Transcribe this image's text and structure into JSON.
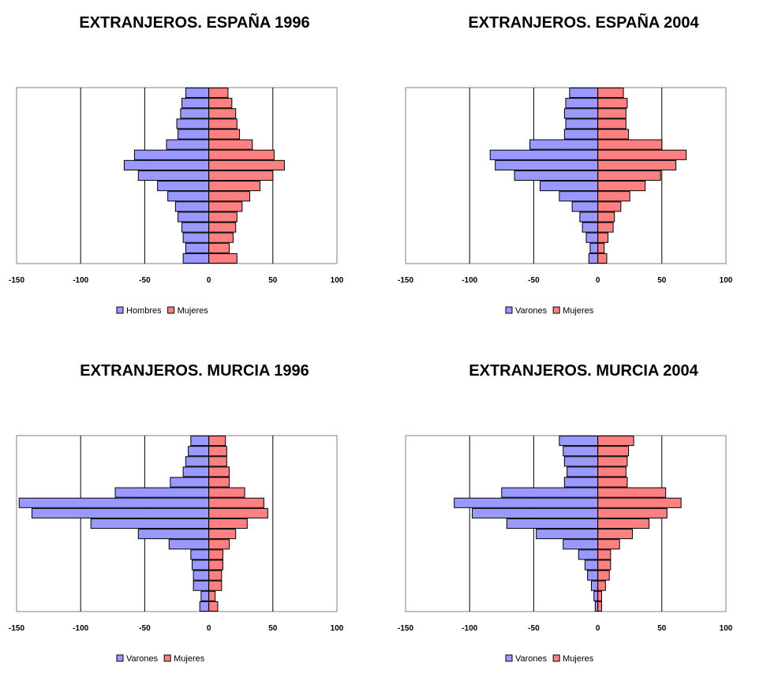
{
  "chart_data": [
    {
      "type": "bar",
      "title": "EXTRANJEROS. ESPAÑA 1996",
      "xlim": [
        -150,
        100
      ],
      "xticks": [
        "-150",
        "-100",
        "-50",
        "0",
        "50",
        "100"
      ],
      "series": [
        {
          "name": "Hombres",
          "color": "#9999ff",
          "values": [
            -20,
            -18,
            -20,
            -21,
            -24,
            -26,
            -32,
            -40,
            -55,
            -66,
            -58,
            -33,
            -24,
            -25,
            -22,
            -21,
            -18
          ]
        },
        {
          "name": "Mujeres",
          "color": "#ff8080",
          "values": [
            22,
            16,
            19,
            21,
            22,
            26,
            32,
            40,
            50,
            59,
            51,
            34,
            24,
            22,
            21,
            18,
            15
          ]
        }
      ]
    },
    {
      "type": "bar",
      "title": "EXTRANJEROS. ESPAÑA 2004",
      "xlim": [
        -150,
        100
      ],
      "xticks": [
        "-150",
        "-100",
        "-50",
        "0",
        "50",
        "100"
      ],
      "series": [
        {
          "name": "Varones",
          "color": "#9999ff",
          "values": [
            -7,
            -6,
            -9,
            -12,
            -14,
            -20,
            -30,
            -45,
            -65,
            -80,
            -84,
            -53,
            -26,
            -25,
            -26,
            -25,
            -22
          ]
        },
        {
          "name": "Mujeres",
          "color": "#ff8080",
          "values": [
            7,
            5,
            8,
            12,
            13,
            18,
            25,
            37,
            49,
            61,
            69,
            50,
            24,
            22,
            22,
            23,
            20
          ]
        }
      ]
    },
    {
      "type": "bar",
      "title": "EXTRANJEROS. MURCIA 1996",
      "xlim": [
        -150,
        100
      ],
      "xticks": [
        "-150",
        "-100",
        "-50",
        "0",
        "50",
        "100"
      ],
      "series": [
        {
          "name": "Varones",
          "color": "#9999ff",
          "values": [
            -7,
            -6,
            -12,
            -12,
            -13,
            -14,
            -31,
            -55,
            -92,
            -138,
            -148,
            -73,
            -30,
            -20,
            -18,
            -16,
            -14
          ]
        },
        {
          "name": "Mujeres",
          "color": "#ff8080",
          "values": [
            7,
            5,
            10,
            10,
            11,
            11,
            16,
            21,
            30,
            46,
            43,
            28,
            16,
            16,
            14,
            14,
            13
          ]
        }
      ]
    },
    {
      "type": "bar",
      "title": "EXTRANJEROS. MURCIA 2004",
      "xlim": [
        -150,
        100
      ],
      "xticks": [
        "-150",
        "-100",
        "-50",
        "0",
        "50",
        "100"
      ],
      "series": [
        {
          "name": "Varones",
          "color": "#9999ff",
          "values": [
            -2,
            -3,
            -5,
            -8,
            -10,
            -15,
            -27,
            -48,
            -71,
            -98,
            -112,
            -75,
            -26,
            -24,
            -26,
            -27,
            -30
          ]
        },
        {
          "name": "Mujeres",
          "color": "#ff8080",
          "values": [
            3,
            3,
            6,
            9,
            10,
            10,
            17,
            27,
            40,
            54,
            65,
            53,
            23,
            22,
            23,
            24,
            28
          ]
        }
      ]
    }
  ]
}
